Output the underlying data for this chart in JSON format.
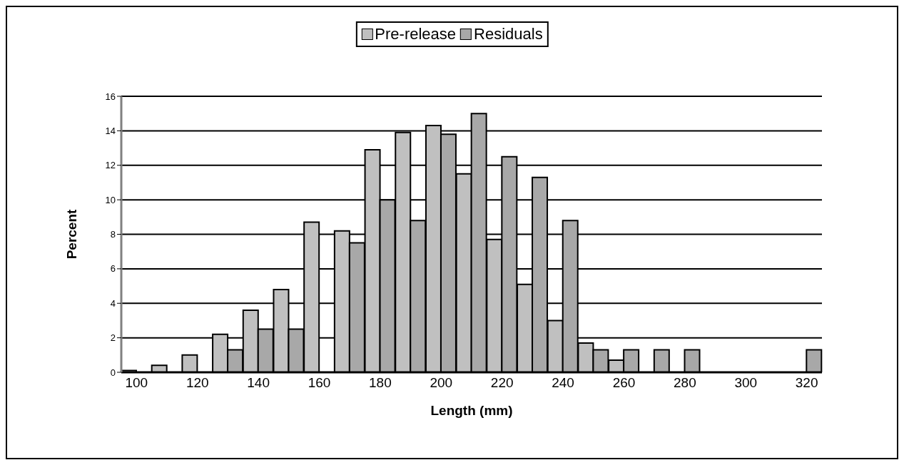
{
  "chart_data": {
    "type": "bar",
    "xlabel": "Length (mm)",
    "ylabel": "Percent",
    "categories": [
      "100",
      null,
      "120",
      null,
      "140",
      null,
      "160",
      null,
      "180",
      null,
      "200",
      null,
      "220",
      null,
      "240",
      null,
      "260",
      null,
      "280",
      null,
      "300",
      null,
      "320"
    ],
    "series": [
      {
        "name": "Pre-release",
        "color": "#c0c0c0",
        "values": [
          0.1,
          0.4,
          1.0,
          2.2,
          3.6,
          4.8,
          8.7,
          8.2,
          12.9,
          13.9,
          14.3,
          11.5,
          7.7,
          5.1,
          3.0,
          1.7,
          0.7,
          0,
          0,
          0,
          0,
          0,
          0
        ]
      },
      {
        "name": "Residuals",
        "color": "#a8a8a8",
        "values": [
          0,
          0,
          0,
          1.3,
          2.5,
          2.5,
          0,
          7.5,
          10.0,
          8.8,
          13.8,
          15.0,
          12.5,
          11.3,
          8.8,
          1.3,
          1.3,
          1.3,
          1.3,
          0,
          0,
          0,
          1.3
        ]
      }
    ],
    "ylim": [
      0,
      16
    ],
    "yticks": [
      0,
      2,
      4,
      6,
      8,
      10,
      12,
      14,
      16
    ],
    "grid": "y",
    "legend": "top"
  }
}
